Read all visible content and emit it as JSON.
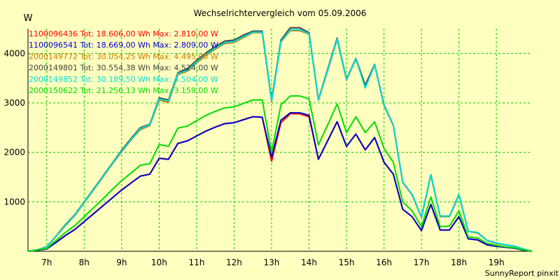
{
  "chart_data": {
    "type": "line",
    "title": "Wechselrichtervergleich vom 05.09.2006",
    "ylabel": "W",
    "ylim": [
      0,
      4500
    ],
    "y_ticks": [
      1000,
      2000,
      3000,
      4000
    ],
    "y_tick_labels": [
      "1000",
      "2000",
      "3000",
      "4000"
    ],
    "x_range": [
      6.5,
      19.95
    ],
    "x_ticks": [
      7,
      8,
      9,
      10,
      11,
      12,
      13,
      14,
      15,
      16,
      17,
      18,
      19
    ],
    "x_tick_labels": [
      "7h",
      "8h",
      "9h",
      "10h",
      "11h",
      "12h",
      "13h",
      "14h",
      "15h",
      "16h",
      "17h",
      "18h",
      "19h"
    ],
    "grid": true,
    "legend_position": "top-left",
    "footer": "SunnyReport pinxit",
    "x": [
      6.5,
      6.75,
      7.0,
      7.25,
      7.5,
      7.75,
      8.0,
      8.25,
      8.5,
      8.75,
      9.0,
      9.25,
      9.5,
      9.75,
      10.0,
      10.25,
      10.5,
      10.75,
      11.0,
      11.25,
      11.5,
      11.75,
      12.0,
      12.25,
      12.5,
      12.75,
      13.0,
      13.25,
      13.5,
      13.75,
      14.0,
      14.25,
      14.5,
      14.75,
      15.0,
      15.25,
      15.5,
      15.75,
      16.0,
      16.25,
      16.5,
      16.75,
      17.0,
      17.25,
      17.5,
      17.75,
      18.0,
      18.25,
      18.5,
      18.75,
      19.0,
      19.25,
      19.5,
      19.75,
      19.95
    ],
    "series": [
      {
        "name": "1100096436",
        "legend": "1100096436 Tot: 18.606,00 Wh Max: 2.810,00 W",
        "color": "#ff0000",
        "values": [
          0,
          20,
          50,
          180,
          320,
          440,
          600,
          760,
          920,
          1080,
          1240,
          1380,
          1520,
          1560,
          1880,
          1860,
          2180,
          2230,
          2330,
          2430,
          2510,
          2580,
          2600,
          2660,
          2720,
          2710,
          1820,
          2600,
          2780,
          2780,
          2720,
          1860,
          2240,
          2620,
          2120,
          2370,
          2050,
          2300,
          1800,
          1560,
          850,
          700,
          420,
          950,
          430,
          430,
          700,
          250,
          230,
          130,
          100,
          80,
          60,
          20,
          0
        ]
      },
      {
        "name": "1100096541",
        "legend": "1100096541 Tot: 18.669,00 Wh Max: 2.809,00 W",
        "color": "#0000cc",
        "values": [
          0,
          20,
          50,
          180,
          320,
          440,
          600,
          760,
          920,
          1080,
          1240,
          1380,
          1520,
          1560,
          1880,
          1860,
          2180,
          2230,
          2330,
          2430,
          2510,
          2580,
          2600,
          2660,
          2720,
          2710,
          1900,
          2650,
          2800,
          2800,
          2750,
          1860,
          2240,
          2620,
          2120,
          2370,
          2050,
          2300,
          1800,
          1560,
          850,
          700,
          420,
          950,
          430,
          430,
          700,
          250,
          230,
          130,
          100,
          80,
          60,
          20,
          0
        ]
      },
      {
        "name": "2000149772",
        "legend": "2000149772 Tot: 30.054,25 Wh Max: 4.495,00 W",
        "color": "#cc7a00",
        "values": [
          0,
          30,
          80,
          300,
          520,
          720,
          980,
          1240,
          1500,
          1760,
          2010,
          2250,
          2460,
          2540,
          3060,
          3010,
          3570,
          3640,
          3810,
          3960,
          4090,
          4200,
          4220,
          4320,
          4420,
          4420,
          3020,
          4230,
          4460,
          4460,
          4390,
          3050,
          3660,
          4280,
          3460,
          3880,
          3340,
          3760,
          2940,
          2540,
          1390,
          1140,
          680,
          1540,
          700,
          700,
          1140,
          400,
          370,
          220,
          160,
          130,
          100,
          40,
          0
        ]
      },
      {
        "name": "2000149801",
        "legend": "2000149801 Tot: 30.554,38 Wh Max: 4.524,00 W",
        "color": "#404040",
        "values": [
          0,
          30,
          90,
          310,
          540,
          740,
          1000,
          1260,
          1520,
          1780,
          2040,
          2280,
          2500,
          2570,
          3100,
          3060,
          3610,
          3690,
          3860,
          4010,
          4140,
          4250,
          4270,
          4370,
          4450,
          4450,
          3060,
          4270,
          4520,
          4520,
          4420,
          3070,
          3690,
          4310,
          3480,
          3900,
          3360,
          3780,
          2960,
          2550,
          1400,
          1150,
          690,
          1550,
          710,
          710,
          1150,
          400,
          380,
          220,
          170,
          130,
          100,
          40,
          0
        ]
      },
      {
        "name": "2000149852",
        "legend": "2000149852 Tot: 30.189,50 Wh Max: 4.504,00 W",
        "color": "#00dddd",
        "values": [
          0,
          30,
          85,
          305,
          530,
          730,
          990,
          1250,
          1510,
          1770,
          2020,
          2260,
          2480,
          2560,
          3080,
          3040,
          3590,
          3660,
          3830,
          3980,
          4110,
          4220,
          4240,
          4340,
          4430,
          4430,
          3040,
          4240,
          4480,
          4480,
          4400,
          3060,
          3670,
          4290,
          3470,
          3890,
          3300,
          3770,
          2950,
          2550,
          1400,
          1150,
          690,
          1550,
          710,
          710,
          1150,
          400,
          380,
          220,
          170,
          130,
          100,
          40,
          0
        ]
      },
      {
        "name": "2000150622",
        "legend": "2000150622 Tot: 21.256,13 Wh Max: 3.159,00 W",
        "color": "#00dd00",
        "values": [
          0,
          25,
          60,
          220,
          380,
          520,
          700,
          880,
          1060,
          1250,
          1430,
          1580,
          1740,
          1770,
          2160,
          2120,
          2490,
          2530,
          2640,
          2750,
          2830,
          2900,
          2920,
          2990,
          3060,
          3060,
          2000,
          2960,
          3140,
          3140,
          3080,
          2150,
          2560,
          2980,
          2400,
          2720,
          2400,
          2620,
          2080,
          1800,
          1000,
          820,
          500,
          1100,
          500,
          510,
          820,
          290,
          270,
          160,
          120,
          90,
          70,
          25,
          0
        ]
      }
    ]
  }
}
